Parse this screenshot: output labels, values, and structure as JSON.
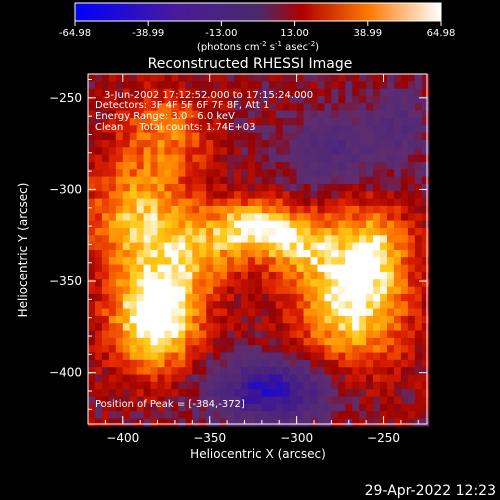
{
  "chart_data": {
    "type": "heatmap",
    "title": "Reconstructed RHESSI Image",
    "xlabel": "Heliocentric X (arcsec)",
    "ylabel": "Heliocentric Y (arcsec)",
    "xlim": [
      -420,
      -225
    ],
    "ylim": [
      -428,
      -237
    ],
    "xticks": [
      -400,
      -350,
      -300,
      -250
    ],
    "yticks": [
      -250,
      -300,
      -350,
      -400
    ],
    "colorbar": {
      "min": -64.98,
      "max": 64.98,
      "ticks": [
        "-64.98",
        "-38.99",
        "-13.00",
        "13.00",
        "38.99",
        "64.98"
      ],
      "label_base": "(photons cm",
      "label_exp1": "-2",
      "label_mid1": " s",
      "label_exp2": "-1",
      "label_mid2": " asec",
      "label_exp3": "-2",
      "label_end": ")"
    },
    "info_lines": [
      "3-Jun-2002 17:12:52.000 to 17:15:24.000",
      "Detectors: 3F 4F 5F 6F 7F 8F, Att 1",
      "Energy Range: 3.0 - 6.0 keV",
      "Clean     Total counts: 1.74E+03"
    ],
    "peak_text": "Position of Peak = [-384,-372]",
    "peak": [
      -384,
      -372
    ],
    "blobs": [
      {
        "x": -381,
        "y": -370,
        "amp": 70,
        "sx": 18,
        "sy": 20
      },
      {
        "x": -390,
        "y": -315,
        "amp": 45,
        "sx": 22,
        "sy": 22
      },
      {
        "x": -375,
        "y": -268,
        "amp": 30,
        "sx": 18,
        "sy": 16
      },
      {
        "x": -355,
        "y": -335,
        "amp": 30,
        "sx": 18,
        "sy": 14
      },
      {
        "x": -325,
        "y": -320,
        "amp": 50,
        "sx": 16,
        "sy": 10
      },
      {
        "x": -300,
        "y": -330,
        "amp": 35,
        "sx": 16,
        "sy": 12
      },
      {
        "x": -268,
        "y": -360,
        "amp": 58,
        "sx": 22,
        "sy": 26
      },
      {
        "x": -255,
        "y": -330,
        "amp": 30,
        "sx": 14,
        "sy": 16
      },
      {
        "x": -315,
        "y": -410,
        "amp": -55,
        "sx": 24,
        "sy": 12
      },
      {
        "x": -280,
        "y": -278,
        "amp": -25,
        "sx": 20,
        "sy": 14
      },
      {
        "x": -240,
        "y": -265,
        "amp": -20,
        "sx": 12,
        "sy": 14
      }
    ]
  },
  "timestamp": "29-Apr-2022 12:23"
}
